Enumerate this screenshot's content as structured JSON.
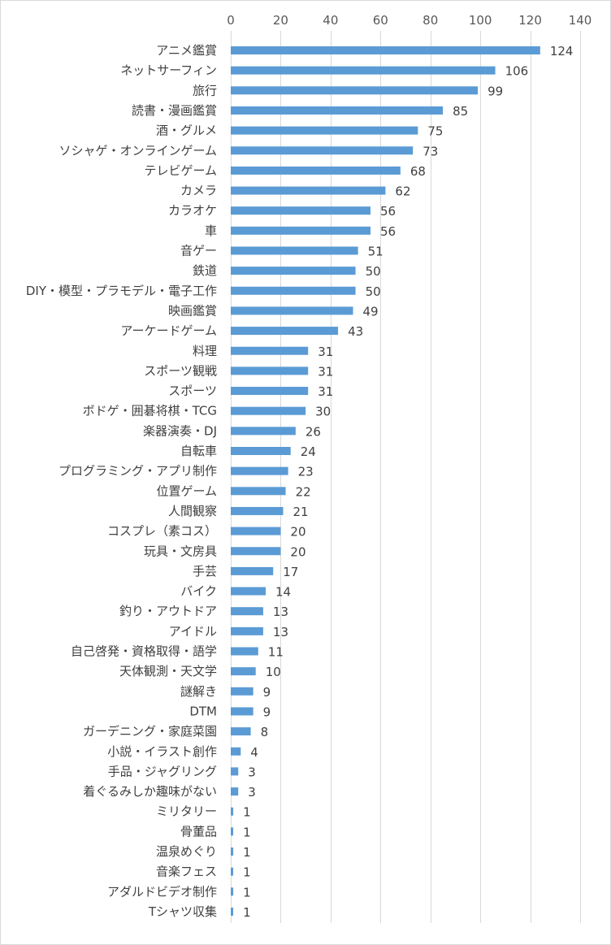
{
  "chart_data": {
    "type": "bar",
    "orientation": "horizontal",
    "title": "",
    "xlabel": "",
    "ylabel": "",
    "xlim": [
      0,
      140
    ],
    "x_ticks": [
      0,
      20,
      40,
      60,
      80,
      100,
      120,
      140
    ],
    "axis_position": "top",
    "grid": true,
    "bar_color": "#5B9BD5",
    "categories": [
      "アニメ鑑賞",
      "ネットサーフィン",
      "旅行",
      "読書・漫画鑑賞",
      "酒・グルメ",
      "ソシャゲ・オンラインゲーム",
      "テレビゲーム",
      "カメラ",
      "カラオケ",
      "車",
      "音ゲー",
      "鉄道",
      "DIY・模型・プラモデル・電子工作",
      "映画鑑賞",
      "アーケードゲーム",
      "料理",
      "スポーツ観戦",
      "スポーツ",
      "ボドゲ・囲碁将棋・TCG",
      "楽器演奏・DJ",
      "自転車",
      "プログラミング・アプリ制作",
      "位置ゲーム",
      "人間観察",
      "コスプレ（素コス）",
      "玩具・文房具",
      "手芸",
      "バイク",
      "釣り・アウトドア",
      "アイドル",
      "自己啓発・資格取得・語学",
      "天体観測・天文学",
      "謎解き",
      "DTM",
      "ガーデニング・家庭菜園",
      "小説・イラスト創作",
      "手品・ジャグリング",
      "着ぐるみしか趣味がない",
      "ミリタリー",
      "骨董品",
      "温泉めぐり",
      "音楽フェス",
      "アダルドビデオ制作",
      "Tシャツ収集"
    ],
    "values": [
      124,
      106,
      99,
      85,
      75,
      73,
      68,
      62,
      56,
      56,
      51,
      50,
      50,
      49,
      43,
      31,
      31,
      31,
      30,
      26,
      24,
      23,
      22,
      21,
      20,
      20,
      17,
      14,
      13,
      13,
      11,
      10,
      9,
      9,
      8,
      4,
      3,
      3,
      1,
      1,
      1,
      1,
      1,
      1
    ]
  }
}
